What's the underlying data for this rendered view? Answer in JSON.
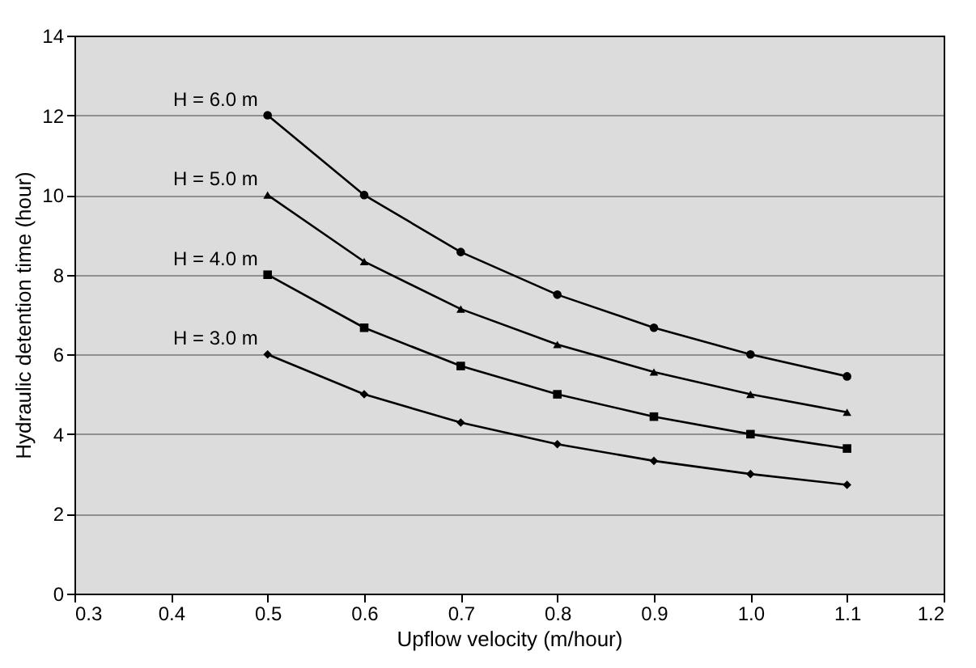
{
  "chart_data": {
    "type": "line",
    "xlabel": "Upflow velocity (m/hour)",
    "ylabel": "Hydraulic detention time (hour)",
    "x": [
      0.5,
      0.6,
      0.7,
      0.8,
      0.9,
      1.0,
      1.1
    ],
    "series": [
      {
        "name": "H = 6.0 m",
        "color": "#000000",
        "marker": "circle",
        "values": [
          12,
          10,
          8.57,
          7.5,
          6.67,
          6,
          5.45
        ]
      },
      {
        "name": "H = 5.0 m",
        "color": "#000000",
        "marker": "triangle",
        "values": [
          10,
          8.33,
          7.14,
          6.25,
          5.56,
          5,
          4.55
        ]
      },
      {
        "name": "H = 4.0 m",
        "color": "#000000",
        "marker": "square",
        "values": [
          8,
          6.67,
          5.71,
          5,
          4.44,
          4,
          3.64
        ]
      },
      {
        "name": "H = 3.0 m",
        "color": "#000000",
        "marker": "diamond",
        "values": [
          6,
          5,
          4.29,
          3.75,
          3.33,
          3,
          2.73
        ]
      }
    ],
    "xlim": [
      0.3,
      1.2
    ],
    "xticks": [
      0.3,
      0.4,
      0.5,
      0.6,
      0.7,
      0.8,
      0.9,
      {
        "value": 1,
        "label": "1.0"
      },
      1.1,
      1.2
    ],
    "ylim": [
      0,
      14
    ],
    "yticks": [
      0,
      2,
      4,
      6,
      8,
      10,
      12,
      14
    ],
    "grid": "y",
    "line_style": "solid"
  }
}
